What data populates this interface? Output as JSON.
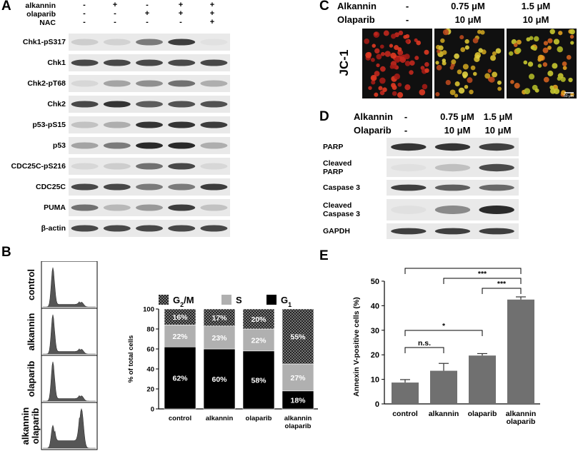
{
  "panel_a": {
    "letter": "A",
    "treatments": [
      {
        "label": "alkannin",
        "marks": [
          "-",
          "+",
          "-",
          "+",
          "+"
        ]
      },
      {
        "label": "olaparib",
        "marks": [
          "-",
          "-",
          "+",
          "+",
          "+"
        ]
      },
      {
        "label": "NAC",
        "marks": [
          "-",
          "-",
          "-",
          "-",
          "+"
        ]
      }
    ],
    "blots": [
      {
        "label": "Chk1-pS317",
        "intensity": [
          0.15,
          0.12,
          0.55,
          0.85,
          0.05
        ]
      },
      {
        "label": "Chk1",
        "intensity": [
          0.8,
          0.8,
          0.8,
          0.8,
          0.8
        ]
      },
      {
        "label": "Chk2-pT68",
        "intensity": [
          0.1,
          0.35,
          0.45,
          0.6,
          0.3
        ]
      },
      {
        "label": "Chk2",
        "intensity": [
          0.8,
          0.9,
          0.7,
          0.75,
          0.75
        ]
      },
      {
        "label": "p53-pS15",
        "intensity": [
          0.2,
          0.3,
          0.9,
          0.9,
          0.85
        ]
      },
      {
        "label": "p53",
        "intensity": [
          0.35,
          0.55,
          0.95,
          0.95,
          0.3
        ]
      },
      {
        "label": "CDC25C-pS216",
        "intensity": [
          0.1,
          0.15,
          0.6,
          0.8,
          0.1
        ]
      },
      {
        "label": "CDC25C",
        "intensity": [
          0.8,
          0.8,
          0.55,
          0.55,
          0.85
        ]
      },
      {
        "label": "PUMA",
        "intensity": [
          0.6,
          0.25,
          0.4,
          0.85,
          0.2
        ]
      },
      {
        "label": "β-actin",
        "intensity": [
          0.8,
          0.8,
          0.8,
          0.8,
          0.8
        ]
      }
    ]
  },
  "panel_b": {
    "letter": "B",
    "flow_labels": [
      "control",
      "alkannin",
      "olaparib",
      "alkannin\nolaparib"
    ],
    "legend": [
      {
        "label": "G2/M",
        "color": "#2a2a2a"
      },
      {
        "label": "S",
        "color": "#b0b0b0"
      },
      {
        "label": "G1",
        "color": "#000000"
      }
    ],
    "colors": {
      "g1": "#000000",
      "s": "#b0b0b0",
      "g2m": "#3a3a3a"
    }
  },
  "panel_c": {
    "letter": "C",
    "row1_label": "Alkannin",
    "row2_label": "Olaparib",
    "columns": [
      {
        "alkannin": "-",
        "olaparib": "-"
      },
      {
        "alkannin": "0.75 μM",
        "olaparib": "10 μM"
      },
      {
        "alkannin": "1.5 μM",
        "olaparib": "10 μM"
      }
    ],
    "stain_label": "JC-1",
    "scale_bar": "50 μm"
  },
  "panel_d": {
    "letter": "D",
    "row1_label": "Alkannin",
    "row2_label": "Olaparib",
    "columns": [
      {
        "alkannin": "-",
        "olaparib": "-"
      },
      {
        "alkannin": "0.75 μM",
        "olaparib": "10 μM"
      },
      {
        "alkannin": "1.5 μM",
        "olaparib": "10 μM"
      }
    ],
    "blots": [
      {
        "label": "PARP",
        "intensity": [
          0.85,
          0.85,
          0.8
        ]
      },
      {
        "label": "Cleaved\nPARP",
        "intensity": [
          0.05,
          0.2,
          0.75
        ]
      },
      {
        "label": "Caspase 3",
        "intensity": [
          0.8,
          0.65,
          0.6
        ]
      },
      {
        "label": "Cleaved\nCaspase 3",
        "intensity": [
          0.05,
          0.45,
          0.9
        ]
      },
      {
        "label": "GAPDH",
        "intensity": [
          0.8,
          0.8,
          0.8
        ]
      }
    ]
  },
  "panel_e": {
    "letter": "E",
    "significance": [
      {
        "label": "***",
        "from": 0,
        "to": 3
      },
      {
        "label": "***",
        "from": 1,
        "to": 3
      },
      {
        "label": "***",
        "from": 2,
        "to": 3
      },
      {
        "label": "*",
        "from": 0,
        "to": 2
      },
      {
        "label": "n.s.",
        "from": 0,
        "to": 1
      }
    ]
  },
  "chart_data": [
    {
      "type": "bar",
      "stacked": true,
      "categories": [
        "control",
        "alkannin",
        "olaparib",
        "alkannin\nolaparib"
      ],
      "series": [
        {
          "name": "G1",
          "values": [
            62,
            60,
            58,
            18
          ],
          "labels": [
            "62%",
            "60%",
            "58%",
            "18%"
          ]
        },
        {
          "name": "S",
          "values": [
            22,
            23,
            22,
            27
          ],
          "labels": [
            "22%",
            "23%",
            "22%",
            "27%"
          ]
        },
        {
          "name": "G2/M",
          "values": [
            16,
            17,
            20,
            55
          ],
          "labels": [
            "16%",
            "17%",
            "20%",
            "55%"
          ]
        }
      ],
      "ylabel": "% of total cells",
      "ylim": [
        0,
        100
      ],
      "yticks": [
        "0",
        "20",
        "40",
        "60",
        "80",
        "100"
      ],
      "legend": "top"
    },
    {
      "type": "bar",
      "categories": [
        "control",
        "alkannin",
        "olaparib",
        "alkannin\nolaparib"
      ],
      "values": [
        8.7,
        13.5,
        19.7,
        42.5
      ],
      "errors": [
        1.2,
        3.0,
        0.8,
        1.1
      ],
      "ylabel": "Annexin V-positive cells (%)",
      "ylim": [
        0,
        50
      ],
      "yticks": [
        "0",
        "10",
        "20",
        "30",
        "40",
        "50"
      ],
      "bar_color": "#707070"
    }
  ]
}
